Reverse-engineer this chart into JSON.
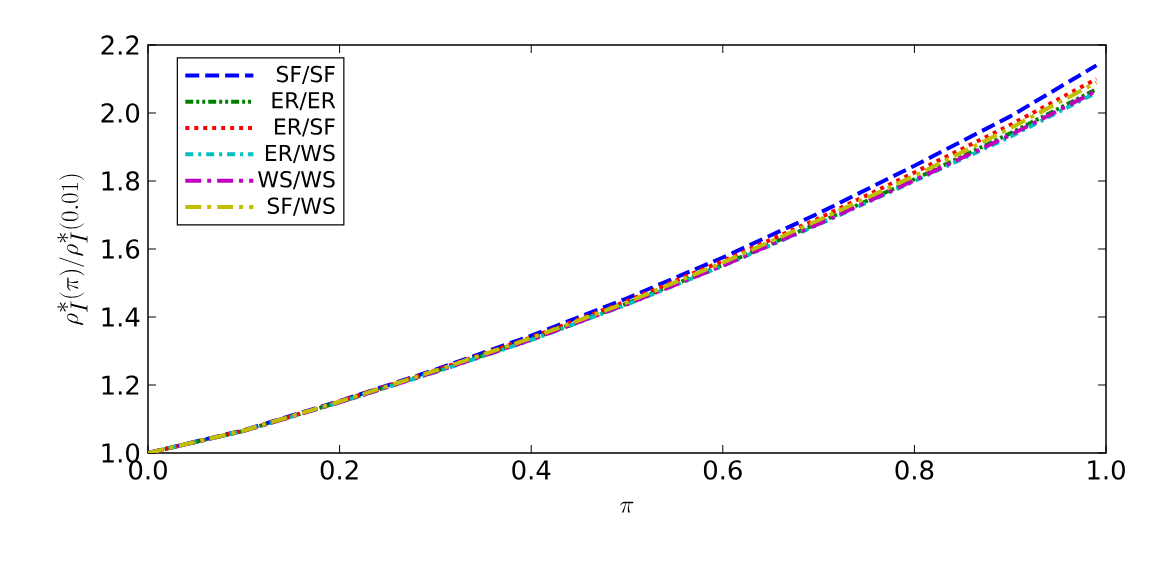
{
  "chart_data": {
    "type": "line",
    "xlabel": "\\pi",
    "ylabel": "\\rho_I^*(\\pi)/\\rho_I^*(0.01)",
    "x": [
      0.0,
      0.1,
      0.2,
      0.3,
      0.4,
      0.5,
      0.6,
      0.7,
      0.8,
      0.9,
      0.99
    ],
    "series": [
      {
        "name": "SF/SF",
        "color": "#0000ff",
        "line_style": "dashed",
        "values": [
          1.0,
          1.067,
          1.153,
          1.245,
          1.345,
          1.455,
          1.575,
          1.705,
          1.845,
          1.99,
          2.14
        ]
      },
      {
        "name": "ER/ER",
        "color": "#008000",
        "line_style": "dashdotdotted",
        "values": [
          1.0,
          1.065,
          1.15,
          1.24,
          1.335,
          1.44,
          1.553,
          1.677,
          1.805,
          1.94,
          2.07
        ]
      },
      {
        "name": "ER/SF",
        "color": "#ff0000",
        "line_style": "dotted",
        "values": [
          1.0,
          1.066,
          1.152,
          1.243,
          1.34,
          1.447,
          1.565,
          1.69,
          1.825,
          1.965,
          2.1
        ]
      },
      {
        "name": "ER/WS",
        "color": "#00bfbf",
        "line_style": "dashdot",
        "values": [
          1.0,
          1.065,
          1.149,
          1.238,
          1.332,
          1.437,
          1.55,
          1.672,
          1.8,
          1.93,
          2.06
        ]
      },
      {
        "name": "WS/WS",
        "color": "#bf00bf",
        "line_style": "longdashdot",
        "values": [
          1.0,
          1.065,
          1.149,
          1.239,
          1.333,
          1.438,
          1.551,
          1.674,
          1.802,
          1.935,
          2.065
        ]
      },
      {
        "name": "SF/WS",
        "color": "#bfbf00",
        "line_style": "longdashdot",
        "values": [
          1.0,
          1.066,
          1.151,
          1.242,
          1.338,
          1.443,
          1.56,
          1.685,
          1.815,
          1.955,
          2.09
        ]
      }
    ],
    "xlim": [
      0,
      1
    ],
    "ylim": [
      1.0,
      2.2
    ],
    "xticks": [
      {
        "value": 0,
        "label": "0.0"
      },
      0.2,
      0.4,
      0.6,
      0.8,
      {
        "value": 1,
        "label": "1.0"
      }
    ],
    "yticks": [
      {
        "value": 1,
        "label": "1.0"
      },
      1.2,
      1.4,
      1.6,
      1.8,
      {
        "value": 2,
        "label": "2.0"
      },
      2.2
    ],
    "legend": "top left",
    "grid": false
  }
}
